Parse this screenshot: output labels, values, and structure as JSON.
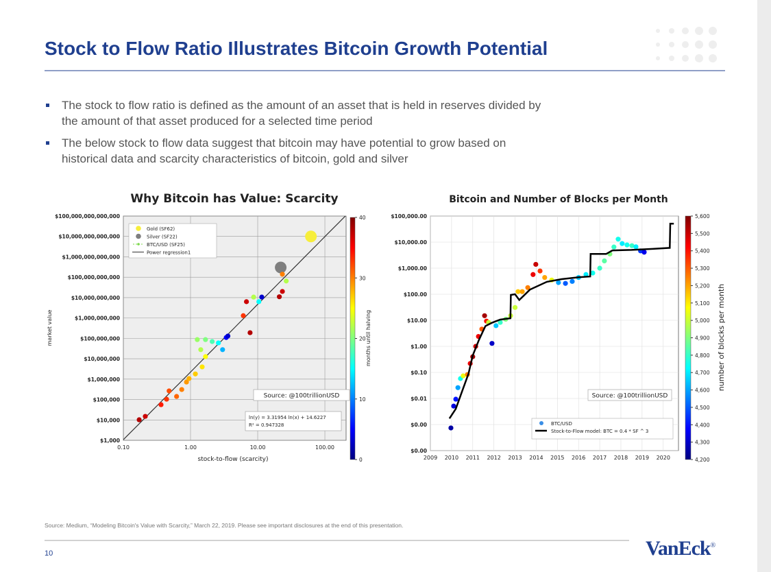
{
  "title": "Stock to Flow Ratio Illustrates Bitcoin Growth Potential",
  "bullets": [
    "The stock to flow ratio is defined as the amount of an asset that is held in reserves divided by the amount of that asset produced for a selected time period",
    "The below stock to flow data suggest that bitcoin may have potential to grow based on historical data and scarcity characteristics of bitcoin, gold and silver"
  ],
  "footnote": "Source: Medium, “Modeling Bitcoin's Value with Scarcity,” March 22, 2019. Please see important disclosures at the end of this presentation.",
  "page_number": "10",
  "logo": "VanEck",
  "logo_mark": "®",
  "chart_data": [
    {
      "type": "scatter",
      "title": "Why Bitcoin has Value: Scarcity",
      "x_label": "stock-to-flow (scarcity)",
      "y_label": "market value",
      "log_x": true,
      "log_y": true,
      "grid": true,
      "xlim": [
        0.1,
        207
      ],
      "xticks": [
        {
          "value": 0.1,
          "label": "0.10"
        },
        {
          "value": 1,
          "label": "1.00"
        },
        {
          "value": 10,
          "label": "10.00"
        },
        {
          "value": 100,
          "label": "100.00"
        }
      ],
      "ylim": [
        1000,
        100000000000000
      ],
      "yticks": [
        {
          "value": 1000,
          "label": "$1,000"
        },
        {
          "value": 10000,
          "label": "$10,000"
        },
        {
          "value": 100000,
          "label": "$100,000"
        },
        {
          "value": 1000000,
          "label": "$1,000,000"
        },
        {
          "value": 10000000,
          "label": "$10,000,000"
        },
        {
          "value": 100000000,
          "label": "$100,000,000"
        },
        {
          "value": 1000000000,
          "label": "$1,000,000,000"
        },
        {
          "value": 10000000000,
          "label": "$10,000,000,000"
        },
        {
          "value": 100000000000,
          "label": "$100,000,000,000"
        },
        {
          "value": 1000000000000,
          "label": "$1,000,000,000,000"
        },
        {
          "value": 10000000000000,
          "label": "$10,000,000,000,000"
        },
        {
          "value": 100000000000000,
          "label": "$100,000,000,000,000"
        }
      ],
      "colorbar": {
        "label": "months until halving",
        "lim": [
          0,
          40
        ],
        "ticks": [
          0,
          10,
          20,
          30,
          40
        ]
      },
      "series": [
        {
          "name": "Gold (SF62)",
          "color": "#f7ee3b",
          "x": [
            62
          ],
          "values": [
            10000000000000
          ]
        },
        {
          "name": "Silver (SF22)",
          "color": "#7f7f7f",
          "x": [
            22
          ],
          "values": [
            300000000000
          ]
        },
        {
          "name": "BTC/USD (SF25)",
          "color": "#7fd84f",
          "x": [
            0.172,
            0.212,
            0.364,
            0.44,
            0.48,
            0.62,
            0.74,
            0.87,
            0.95,
            1.18,
            1.49,
            1.67,
            1.26,
            1.42,
            1.67,
            2.1,
            2.6,
            3.0,
            3.4,
            3.6,
            6.1,
            6.8,
            7.7,
            8.7,
            10.4,
            11.5,
            21,
            23.3,
            23.3,
            26.6
          ],
          "values": [
            10200,
            15000,
            56000,
            104000,
            266000,
            142000,
            310000,
            720000,
            1070000,
            1800000,
            4000000,
            12700000,
            87000000,
            28000000,
            87000000,
            70000000,
            60000000,
            28000000,
            110000000,
            130000000,
            1300000000,
            6300000000,
            190000000,
            10600000000,
            6300000000,
            10600000000,
            11000000000,
            20000000000,
            140000000000,
            65000000000
          ],
          "color_values": [
            38,
            37,
            34,
            33,
            32,
            31,
            30,
            29,
            28,
            27,
            26,
            25,
            21,
            22,
            20,
            18,
            15,
            12,
            5,
            3,
            33,
            37,
            38,
            22,
            15,
            3,
            38,
            37,
            30,
            22
          ]
        }
      ],
      "fit": {
        "name": "Power regression1",
        "color": "#333333",
        "slope": 3.31954,
        "intercept": 14.6227
      },
      "annotations": [
        "Source: @100trillionUSD",
        "ln(y) = 3.31954 ln(x) + 14.6227",
        "R² = 0.947328"
      ]
    },
    {
      "type": "scatter",
      "title": "Bitcoin and Number of Blocks per Month",
      "log_y": true,
      "grid": true,
      "xlim": [
        2009,
        2020.72
      ],
      "xticks": [
        2009,
        2010,
        2011,
        2012,
        2013,
        2014,
        2015,
        2016,
        2017,
        2018,
        2019,
        2020
      ],
      "ylim": [
        0.0001,
        100000
      ],
      "yticks": [
        {
          "value": 0.0001,
          "label": "$0.00"
        },
        {
          "value": 0.001,
          "label": "$0.00"
        },
        {
          "value": 0.01,
          "label": "$0.01"
        },
        {
          "value": 0.1,
          "label": "$0.10"
        },
        {
          "value": 1,
          "label": "$1.00"
        },
        {
          "value": 10,
          "label": "$10.00"
        },
        {
          "value": 100,
          "label": "$100.00"
        },
        {
          "value": 1000,
          "label": "$1,000.00"
        },
        {
          "value": 10000,
          "label": "$10,000.00"
        },
        {
          "value": 100000,
          "label": "$100,000.00"
        }
      ],
      "colorbar": {
        "label": "number of blocks per month",
        "lim": [
          4200,
          5600
        ],
        "ticks": [
          {
            "value": 4200,
            "label": "4,200"
          },
          {
            "value": 4300,
            "label": "4,300"
          },
          {
            "value": 4400,
            "label": "4,400"
          },
          {
            "value": 4500,
            "label": "4,500"
          },
          {
            "value": 4600,
            "label": "4,600"
          },
          {
            "value": 4700,
            "label": "4,700"
          },
          {
            "value": 4800,
            "label": "4,800"
          },
          {
            "value": 4900,
            "label": "4,900"
          },
          {
            "value": 5000,
            "label": "5,000"
          },
          {
            "value": 5100,
            "label": "5,100"
          },
          {
            "value": 5200,
            "label": "5,200"
          },
          {
            "value": 5300,
            "label": "5,300"
          },
          {
            "value": 5400,
            "label": "5,400"
          },
          {
            "value": 5500,
            "label": "5,500"
          },
          {
            "value": 5600,
            "label": "5,600"
          }
        ]
      },
      "series": [
        {
          "name": "BTC/USD",
          "color": "#3a8ee6",
          "x": [
            2009.97,
            2010.1,
            2010.2,
            2010.3,
            2010.42,
            2010.55,
            2010.75,
            2010.88,
            2011.0,
            2011.14,
            2011.27,
            2011.43,
            2011.56,
            2011.65,
            2011.75,
            2011.91,
            2012.1,
            2012.3,
            2012.56,
            2012.79,
            2013.0,
            2013.14,
            2013.34,
            2013.6,
            2013.85,
            2013.98,
            2014.18,
            2014.4,
            2014.73,
            2015.05,
            2015.38,
            2015.7,
            2016.0,
            2016.35,
            2016.67,
            2017.0,
            2017.22,
            2017.48,
            2017.67,
            2017.87,
            2018.06,
            2018.29,
            2018.52,
            2018.71,
            2018.93,
            2019.1
          ],
          "values": [
            0.00074,
            0.0051,
            0.0094,
            0.026,
            0.058,
            0.074,
            0.083,
            0.22,
            0.4,
            1.0,
            2.4,
            4.6,
            15,
            9.3,
            8.3,
            1.3,
            6.2,
            8.3,
            11,
            15,
            31,
            126,
            126,
            180,
            570,
            1400,
            780,
            440,
            350,
            280,
            260,
            310,
            440,
            570,
            650,
            1000,
            1900,
            3500,
            6500,
            13000,
            8800,
            7800,
            7300,
            6600,
            4600,
            4100
          ],
          "color_values": [
            4250,
            4330,
            4400,
            4600,
            4750,
            5050,
            5250,
            5450,
            5550,
            5500,
            5450,
            5300,
            5550,
            5400,
            5000,
            4300,
            4650,
            4800,
            4900,
            5000,
            5000,
            5150,
            5200,
            5250,
            5450,
            5500,
            5350,
            5200,
            5050,
            4600,
            4500,
            4550,
            4650,
            4700,
            4750,
            4800,
            4850,
            4900,
            4800,
            4750,
            4700,
            4750,
            4800,
            4700,
            4450,
            4350
          ]
        },
        {
          "name": "Stock-to-Flow model: BTC = 0.4 * SF ^ 3",
          "type": "line",
          "color": "#000000",
          "x": [
            2009.9,
            2010.2,
            2010.5,
            2010.8,
            2011.0,
            2011.3,
            2011.6,
            2011.9,
            2012.3,
            2012.78,
            2012.8,
            2013.0,
            2013.2,
            2013.7,
            2014.5,
            2015.2,
            2016.0,
            2016.55,
            2016.57,
            2017.3,
            2017.6,
            2018.5,
            2019.5,
            2020.31,
            2020.33,
            2020.5
          ],
          "values": [
            0.0017,
            0.004,
            0.019,
            0.089,
            0.45,
            1.8,
            6,
            8,
            10.6,
            12,
            94,
            100,
            60,
            150,
            300,
            380,
            450,
            480,
            3500,
            3500,
            4800,
            5000,
            5500,
            6000,
            51000,
            51000
          ]
        }
      ],
      "annotations": [
        "Source: @100trillionUSD"
      ]
    }
  ]
}
